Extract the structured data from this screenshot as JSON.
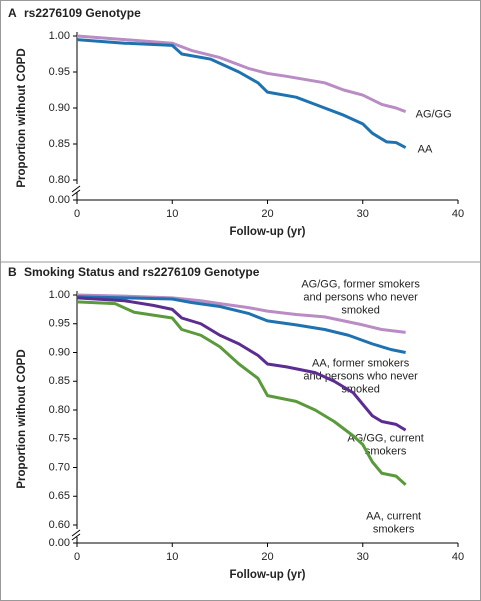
{
  "chart_data": [
    {
      "type": "line",
      "panel_label": "A",
      "title": "rs2276109 Genotype",
      "x_label": "Follow-up (yr)",
      "y_label": "Proportion without COPD",
      "xlim": [
        0,
        40
      ],
      "xticks": [
        0,
        10,
        20,
        30,
        40
      ],
      "ylim": [
        0,
        1.0
      ],
      "axis_break": true,
      "yticks": [
        {
          "value": 0,
          "label": "0.00"
        },
        {
          "value": 0.8,
          "label": "0.80"
        },
        {
          "value": 0.85,
          "label": "0.85"
        },
        {
          "value": 0.9,
          "label": "0.90"
        },
        {
          "value": 0.95,
          "label": "0.95"
        },
        {
          "value": 1.0,
          "label": "1.00"
        }
      ],
      "series": [
        {
          "name": "AG/GG",
          "color": "#b98cc4",
          "x": [
            0,
            5,
            10,
            12,
            15,
            18,
            20,
            22,
            26,
            28,
            30,
            32,
            33.5,
            34.5
          ],
          "values": [
            1.0,
            0.995,
            0.99,
            0.98,
            0.97,
            0.955,
            0.948,
            0.944,
            0.935,
            0.925,
            0.918,
            0.905,
            0.9,
            0.895
          ]
        },
        {
          "name": "AA",
          "color": "#1f72b0",
          "x": [
            0,
            5,
            10,
            11,
            14,
            17,
            19,
            20,
            23,
            25,
            28,
            30,
            31,
            32.5,
            33.5,
            34.5
          ],
          "values": [
            0.995,
            0.99,
            0.987,
            0.975,
            0.968,
            0.95,
            0.935,
            0.922,
            0.915,
            0.905,
            0.89,
            0.878,
            0.865,
            0.853,
            0.852,
            0.845
          ]
        }
      ]
    },
    {
      "type": "line",
      "panel_label": "B",
      "title": "Smoking Status and rs2276109 Genotype",
      "x_label": "Follow-up (yr)",
      "y_label": "Proportion without COPD",
      "xlim": [
        0,
        40
      ],
      "xticks": [
        0,
        10,
        20,
        30,
        40
      ],
      "ylim": [
        0,
        1.0
      ],
      "axis_break": true,
      "yticks": [
        {
          "value": 0,
          "label": "0.00"
        },
        {
          "value": 0.6,
          "label": "0.60"
        },
        {
          "value": 0.65,
          "label": "0.65"
        },
        {
          "value": 0.7,
          "label": "0.70"
        },
        {
          "value": 0.75,
          "label": "0.75"
        },
        {
          "value": 0.8,
          "label": "0.80"
        },
        {
          "value": 0.85,
          "label": "0.85"
        },
        {
          "value": 0.9,
          "label": "0.90"
        },
        {
          "value": 0.95,
          "label": "0.95"
        },
        {
          "value": 1.0,
          "label": "1.00"
        }
      ],
      "series": [
        {
          "name": "AG/GG, former smokers\nand persons who never\nsmoked",
          "color": "#b98cc4",
          "x": [
            0,
            5,
            10,
            13,
            15,
            18,
            20,
            23,
            26,
            28,
            30,
            32,
            34.5
          ],
          "values": [
            1.0,
            0.998,
            0.995,
            0.99,
            0.985,
            0.978,
            0.972,
            0.966,
            0.962,
            0.955,
            0.948,
            0.94,
            0.935
          ]
        },
        {
          "name": "AA, former smokers\nand persons who never\nsmoked",
          "color": "#1f72b0",
          "x": [
            0,
            5,
            10,
            12,
            15,
            18,
            20,
            23,
            26,
            28.5,
            31,
            33,
            34.5
          ],
          "values": [
            0.997,
            0.995,
            0.993,
            0.987,
            0.98,
            0.968,
            0.955,
            0.948,
            0.94,
            0.93,
            0.915,
            0.905,
            0.9
          ]
        },
        {
          "name": "AG/GG, current\nsmokers",
          "color": "#5b2d91",
          "x": [
            0,
            5,
            8,
            10,
            11,
            13,
            15,
            17,
            19,
            20,
            22,
            25,
            27,
            29,
            30,
            31,
            32,
            33.5,
            34.5
          ],
          "values": [
            0.995,
            0.99,
            0.982,
            0.975,
            0.96,
            0.95,
            0.93,
            0.915,
            0.895,
            0.88,
            0.875,
            0.865,
            0.85,
            0.83,
            0.81,
            0.79,
            0.78,
            0.775,
            0.765
          ]
        },
        {
          "name": "AA, current\nsmokers",
          "color": "#5a9a3c",
          "x": [
            0,
            4,
            6,
            8,
            10,
            11,
            13,
            15,
            17,
            19,
            20,
            23,
            25,
            27,
            29,
            30,
            31,
            32,
            33.5,
            34.5
          ],
          "values": [
            0.988,
            0.985,
            0.97,
            0.965,
            0.96,
            0.94,
            0.93,
            0.91,
            0.88,
            0.855,
            0.825,
            0.815,
            0.8,
            0.78,
            0.755,
            0.74,
            0.71,
            0.69,
            0.685,
            0.67
          ]
        }
      ]
    }
  ]
}
